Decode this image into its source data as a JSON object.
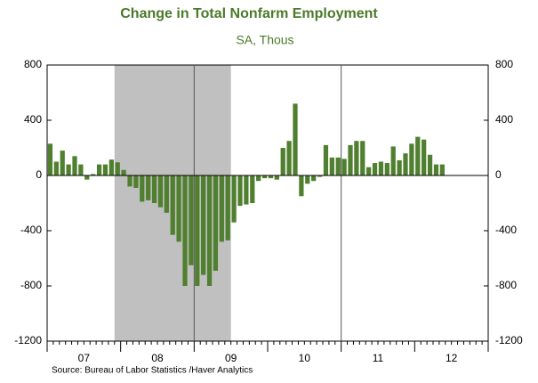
{
  "chart_data": {
    "type": "bar",
    "title": "Change in Total Nonfarm Employment",
    "subtitle": "SA, Thous",
    "source": "Source:  Bureau of Labor Statistics /Haver Analytics",
    "x_labels": [
      "07",
      "08",
      "09",
      "10",
      "11",
      "12"
    ],
    "color": "#4f7f2f",
    "shade_color": "#c0c0c0",
    "values": [
      230,
      100,
      180,
      80,
      140,
      80,
      -30,
      10,
      80,
      80,
      115,
      95,
      40,
      -80,
      -90,
      -190,
      -180,
      -200,
      -230,
      -270,
      -430,
      -480,
      -800,
      -650,
      -800,
      -720,
      -800,
      -690,
      -480,
      -470,
      -340,
      -220,
      -210,
      -200,
      -40,
      -20,
      -20,
      -30,
      200,
      250,
      520,
      -150,
      -60,
      -40,
      -10,
      220,
      130,
      130,
      120,
      220,
      250,
      250,
      60,
      90,
      100,
      90,
      210,
      110,
      160,
      230,
      280,
      260,
      150,
      80,
      80
    ],
    "ylim": [
      -1200,
      800
    ],
    "yticks": [
      -1200,
      -800,
      -400,
      0,
      400,
      800
    ]
  }
}
